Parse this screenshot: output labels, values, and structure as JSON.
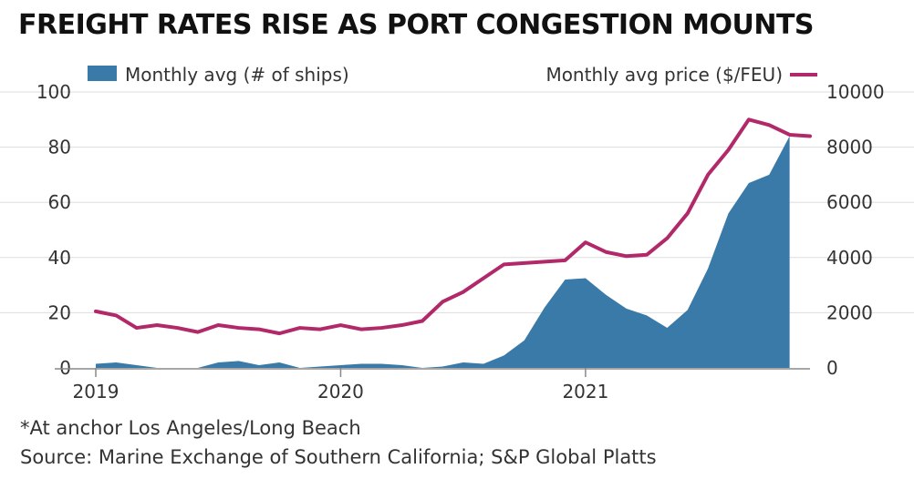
{
  "title": "FREIGHT RATES RISE AS PORT CONGESTION MOUNTS",
  "footnote": "*At anchor Los Angeles/Long Beach",
  "source": "Source: Marine Exchange of Southern California; S&P Global Platts",
  "colors": {
    "area": "#3a7aa8",
    "line": "#b2296a",
    "grid": "#dddddd",
    "axis": "#888888"
  },
  "chart_data": {
    "type": "area",
    "title": "FREIGHT RATES RISE AS PORT CONGESTION MOUNTS",
    "legend": "top",
    "grid": true,
    "x_unit": "month index (Jan 2019 = 0)",
    "x_ticks": [
      {
        "label": "2019",
        "x": 0
      },
      {
        "label": "2020",
        "x": 12
      },
      {
        "label": "2021",
        "x": 24
      }
    ],
    "xlim": [
      0,
      35
    ],
    "left_axis": {
      "ylim": [
        0,
        100
      ],
      "ticks": [
        "0",
        "20",
        "40",
        "60",
        "80",
        "100"
      ],
      "tick_values": [
        0,
        20,
        40,
        60,
        80,
        100
      ]
    },
    "right_axis": {
      "ylim": [
        0,
        10000
      ],
      "ticks": [
        "0",
        "2000",
        "4000",
        "6000",
        "8000",
        "10000"
      ],
      "tick_values": [
        0,
        2000,
        4000,
        6000,
        8000,
        10000
      ]
    },
    "series": [
      {
        "name": "Monthly avg (# of ships)",
        "type": "area",
        "axis": "left",
        "values": [
          1.5,
          2,
          1,
          0,
          0,
          0,
          2,
          2.5,
          1,
          2,
          0,
          0.5,
          1,
          1.5,
          1.5,
          1,
          0,
          0.5,
          2,
          1.5,
          4.5,
          10,
          22,
          32,
          32.5,
          26.5,
          21.5,
          19,
          14.5,
          21,
          36,
          56,
          67,
          70,
          84
        ]
      },
      {
        "name": "Monthly avg price ($/FEU)",
        "type": "line",
        "axis": "right",
        "values": [
          2050,
          1900,
          1450,
          1550,
          1450,
          1300,
          1550,
          1450,
          1400,
          1250,
          1450,
          1400,
          1550,
          1400,
          1450,
          1550,
          1700,
          2400,
          2750,
          3250,
          3750,
          3800,
          3850,
          3900,
          4550,
          4200,
          4050,
          4100,
          4700,
          5600,
          7000,
          7900,
          9000,
          8800,
          8450,
          8400
        ]
      }
    ]
  }
}
